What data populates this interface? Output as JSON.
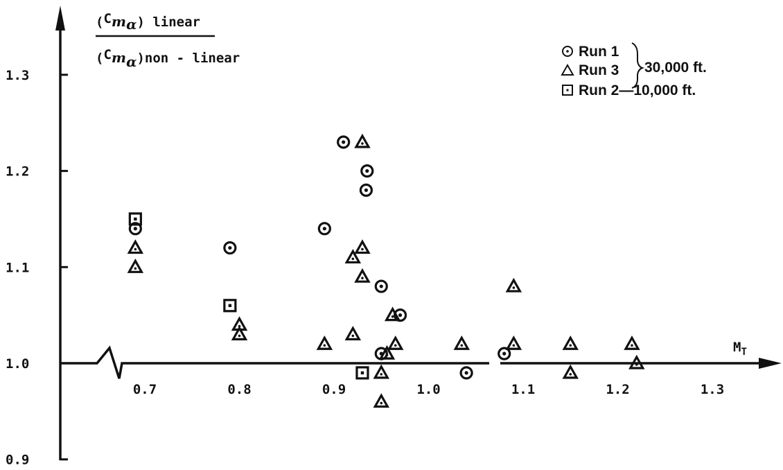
{
  "chart_data": {
    "type": "scatter",
    "xlabel": "M_T",
    "xlabel_main": "M",
    "xlabel_sub": "T",
    "ylabel": {
      "numerator_prefix": "(",
      "numerator_c": "C",
      "numerator_m": "m",
      "numerator_alpha": "α",
      "numerator_suffix": ") linear",
      "denominator_prefix": "(",
      "denominator_c": "C",
      "denominator_m": "m",
      "denominator_alpha": "α",
      "denominator_suffix": ")non - linear"
    },
    "xlim": [
      0.64,
      1.35
    ],
    "ylim": [
      0.88,
      1.36
    ],
    "x_ticks": [
      "0.7",
      "0.8",
      "0.9",
      "1.0",
      "1.1",
      "1.2",
      "1.3"
    ],
    "y_ticks": [
      "0.9",
      "1.0",
      "1.1",
      "1.2",
      "1.3"
    ],
    "axis_break": true,
    "grid": false,
    "legend_position": "top-right",
    "legend": {
      "run1": "Run 1",
      "run3": "Run 3",
      "altitude_30k": "30,000 ft.",
      "run2": "Run 2—10,000 ft."
    },
    "series": [
      {
        "name": "Run 1",
        "marker": "circle",
        "points": [
          [
            0.69,
            1.14
          ],
          [
            0.79,
            1.12
          ],
          [
            0.89,
            1.14
          ],
          [
            0.91,
            1.23
          ],
          [
            0.935,
            1.2
          ],
          [
            0.934,
            1.18
          ],
          [
            0.95,
            1.08
          ],
          [
            0.97,
            1.05
          ],
          [
            0.95,
            1.01
          ],
          [
            1.04,
            0.99
          ],
          [
            1.08,
            1.01
          ]
        ]
      },
      {
        "name": "Run 3",
        "marker": "triangle",
        "points": [
          [
            0.69,
            1.12
          ],
          [
            0.69,
            1.1
          ],
          [
            0.8,
            1.04
          ],
          [
            0.8,
            1.03
          ],
          [
            0.89,
            1.02
          ],
          [
            0.92,
            1.11
          ],
          [
            0.92,
            1.03
          ],
          [
            0.93,
            1.23
          ],
          [
            0.93,
            1.12
          ],
          [
            0.93,
            1.09
          ],
          [
            0.95,
            0.99
          ],
          [
            0.95,
            0.96
          ],
          [
            0.956,
            1.01
          ],
          [
            0.962,
            1.05
          ],
          [
            0.965,
            1.02
          ],
          [
            1.035,
            1.02
          ],
          [
            1.09,
            1.08
          ],
          [
            1.09,
            1.02
          ],
          [
            1.15,
            1.02
          ],
          [
            1.15,
            0.99
          ],
          [
            1.215,
            1.02
          ],
          [
            1.22,
            1.0
          ]
        ]
      },
      {
        "name": "Run 2",
        "marker": "square",
        "points": [
          [
            0.69,
            1.15
          ],
          [
            0.79,
            1.06
          ],
          [
            0.93,
            0.99
          ]
        ]
      }
    ]
  }
}
